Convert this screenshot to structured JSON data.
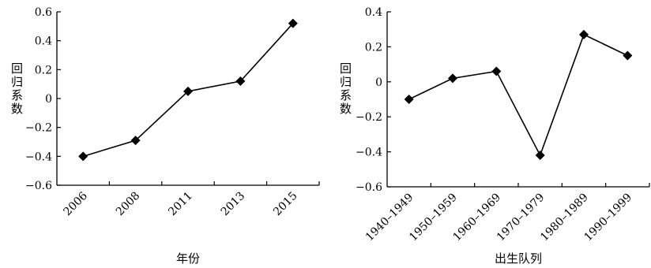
{
  "chart_data": [
    {
      "type": "line",
      "categories": [
        "2006",
        "2008",
        "2011",
        "2013",
        "2015"
      ],
      "series": [
        {
          "values": [
            -0.4,
            -0.29,
            0.05,
            0.12,
            0.52
          ]
        }
      ],
      "xlabel": "年份",
      "ylabel": "回归系数",
      "ylim": [
        -0.6,
        0.6
      ],
      "yticks": [
        0.6,
        0.4,
        0.2,
        0,
        -0.2,
        -0.4,
        -0.6
      ],
      "ytick_labels": [
        "0.6",
        "0.4",
        "0.2",
        "0",
        "−0.2",
        "−0.4",
        "−0.6"
      ],
      "marker": "diamond",
      "grid": false
    },
    {
      "type": "line",
      "categories": [
        "1940–1949",
        "1950–1959",
        "1960–1969",
        "1970–1979",
        "1980–1989",
        "1990–1999"
      ],
      "series": [
        {
          "values": [
            -0.1,
            0.02,
            0.06,
            -0.42,
            0.27,
            0.15
          ]
        }
      ],
      "xlabel": "出生队列",
      "ylabel": "回归系数",
      "ylim": [
        -0.6,
        0.4
      ],
      "yticks": [
        0.4,
        0.2,
        0,
        -0.2,
        -0.4,
        -0.6
      ],
      "ytick_labels": [
        "0.4",
        "0.2",
        "0",
        "−0.2",
        "−0.4",
        "−0.6"
      ],
      "marker": "diamond",
      "grid": false
    }
  ]
}
